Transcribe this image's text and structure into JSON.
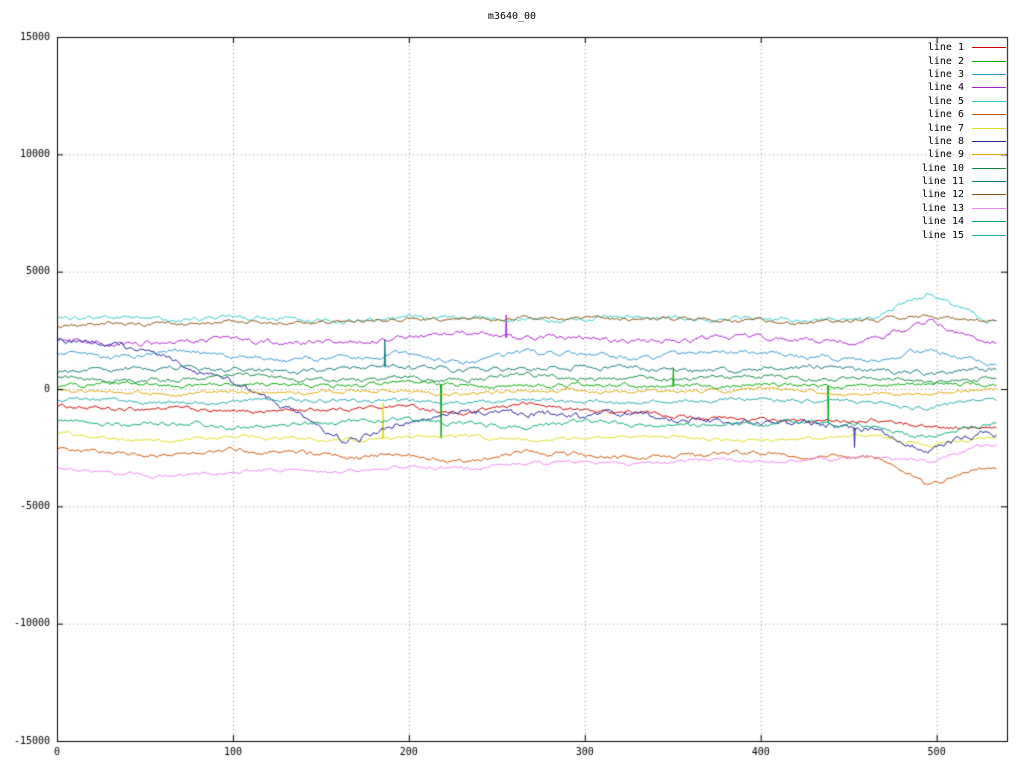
{
  "chart_data": {
    "type": "line",
    "title": "m3640_00",
    "xlabel": "",
    "ylabel": "",
    "xlim": [
      0,
      540
    ],
    "ylim": [
      -15000,
      15000
    ],
    "xticks": [
      0,
      100,
      200,
      300,
      400,
      500
    ],
    "yticks": [
      -15000,
      -10000,
      -5000,
      0,
      5000,
      10000,
      15000
    ],
    "grid": true,
    "grid_style": "dotted",
    "legend_position": "top-right",
    "keypoint_x": [
      0,
      33,
      66,
      99,
      132,
      165,
      198,
      231,
      264,
      297,
      330,
      363,
      396,
      429,
      462,
      495,
      528
    ],
    "x_end": 534,
    "series": [
      {
        "name": "line 1",
        "color": "#cc0000",
        "jitter": 120,
        "values": [
          -700,
          -900,
          -800,
          -1000,
          -900,
          -850,
          -700,
          -1100,
          -600,
          -900,
          -1000,
          -1200,
          -1300,
          -1400,
          -1300,
          -1600,
          -1700
        ],
        "spikes": []
      },
      {
        "name": "line 2",
        "color": "#00aa00",
        "jitter": 130,
        "values": [
          150,
          250,
          100,
          200,
          150,
          100,
          250,
          150,
          100,
          200,
          150,
          100,
          200,
          150,
          100,
          250,
          150
        ],
        "spikes": [
          {
            "x": 218,
            "y": -2100
          },
          {
            "x": 350,
            "y": 900
          },
          {
            "x": 438,
            "y": -1400
          }
        ]
      },
      {
        "name": "line 3",
        "color": "#3399cc",
        "jitter": 150,
        "values": [
          1500,
          1300,
          1600,
          1400,
          1200,
          1350,
          1500,
          1100,
          1600,
          1450,
          1300,
          1500,
          1600,
          1400,
          1200,
          1700,
          1100
        ],
        "spikes": []
      },
      {
        "name": "line 4",
        "color": "#aa22cc",
        "jitter": 160,
        "values": [
          2100,
          1900,
          2000,
          2150,
          1950,
          2050,
          2200,
          2400,
          2100,
          2250,
          2000,
          2100,
          2300,
          2000,
          2100,
          2900,
          1900
        ],
        "spikes": [
          {
            "x": 255,
            "y": 3150
          }
        ]
      },
      {
        "name": "line 5",
        "color": "#33cccc",
        "jitter": 140,
        "values": [
          3000,
          3100,
          2950,
          3050,
          3000,
          2900,
          3100,
          3050,
          2950,
          3000,
          3100,
          2950,
          3000,
          2900,
          3000,
          4100,
          2900
        ],
        "spikes": []
      },
      {
        "name": "line 6",
        "color": "#cc5500",
        "jitter": 130,
        "values": [
          -2500,
          -2700,
          -2800,
          -2600,
          -2700,
          -2900,
          -2800,
          -3100,
          -2700,
          -2800,
          -2900,
          -2800,
          -2700,
          -2900,
          -2800,
          -4100,
          -3300
        ],
        "spikes": []
      },
      {
        "name": "line 7",
        "color": "#dddd22",
        "jitter": 120,
        "values": [
          -1900,
          -2100,
          -2200,
          -2000,
          -2100,
          -2200,
          -2100,
          -2000,
          -2200,
          -2100,
          -2000,
          -2100,
          -2200,
          -2100,
          -2000,
          -2400,
          -2100
        ],
        "spikes": [
          {
            "x": 185,
            "y": -600
          }
        ]
      },
      {
        "name": "line 8",
        "color": "#222299",
        "jitter": 200,
        "values": [
          2100,
          1900,
          1200,
          300,
          -800,
          -2300,
          -1400,
          -900,
          -1000,
          -1200,
          -1100,
          -1300,
          -1400,
          -1500,
          -1700,
          -2600,
          -1900
        ],
        "spikes": [
          {
            "x": 453,
            "y": -2500
          }
        ]
      },
      {
        "name": "line 9",
        "color": "#ddaa00",
        "jitter": 120,
        "values": [
          0,
          -100,
          -200,
          -100,
          -150,
          -50,
          -100,
          -250,
          -100,
          -50,
          -150,
          -100,
          0,
          -100,
          -200,
          -150,
          -50
        ],
        "spikes": []
      },
      {
        "name": "line 10",
        "color": "#118844",
        "jitter": 140,
        "values": [
          500,
          300,
          400,
          600,
          450,
          350,
          500,
          400,
          600,
          500,
          400,
          450,
          550,
          400,
          500,
          300,
          450
        ],
        "spikes": []
      },
      {
        "name": "line 11",
        "color": "#117777",
        "jitter": 150,
        "values": [
          700,
          800,
          950,
          850,
          750,
          900,
          950,
          800,
          850,
          950,
          900,
          750,
          850,
          950,
          800,
          650,
          850
        ],
        "spikes": [
          {
            "x": 186,
            "y": 2100
          }
        ]
      },
      {
        "name": "line 12",
        "color": "#885511",
        "jitter": 120,
        "values": [
          2700,
          2800,
          2750,
          2850,
          2800,
          2900,
          3000,
          2950,
          3050,
          3000,
          2950,
          3000,
          2900,
          2850,
          2950,
          3100,
          2900
        ],
        "spikes": []
      },
      {
        "name": "line 13",
        "color": "#ee88ee",
        "jitter": 110,
        "values": [
          -3300,
          -3600,
          -3700,
          -3500,
          -3400,
          -3500,
          -3300,
          -3400,
          -3200,
          -3100,
          -3200,
          -3000,
          -3100,
          -3000,
          -2900,
          -3100,
          -2400
        ],
        "spikes": []
      },
      {
        "name": "line 14",
        "color": "#00aa77",
        "jitter": 140,
        "values": [
          -1300,
          -1500,
          -1400,
          -1600,
          -1500,
          -1400,
          -1300,
          -1500,
          -1600,
          -1400,
          -1500,
          -1600,
          -1500,
          -1400,
          -1600,
          -2100,
          -1500
        ],
        "spikes": []
      },
      {
        "name": "line 15",
        "color": "#22aaaa",
        "jitter": 130,
        "values": [
          -400,
          -500,
          -600,
          -500,
          -450,
          -550,
          -500,
          -600,
          -450,
          -500,
          -550,
          -500,
          -400,
          -500,
          -600,
          -800,
          -500
        ],
        "spikes": []
      }
    ]
  }
}
